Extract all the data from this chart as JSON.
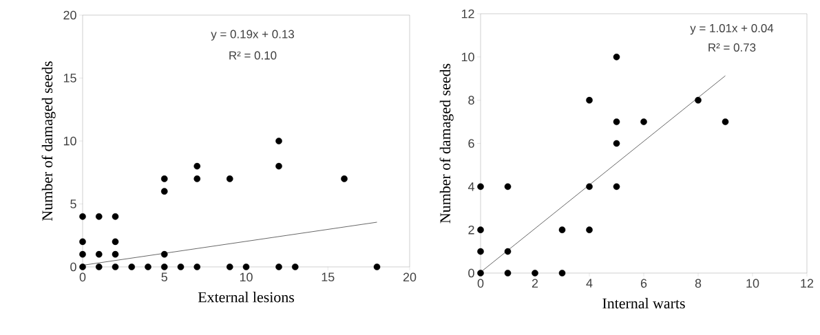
{
  "chart_data": [
    {
      "type": "scatter",
      "xlabel": "External lesions",
      "ylabel": "Number of damaged seeds",
      "xlim": [
        0,
        20
      ],
      "ylim": [
        0,
        20
      ],
      "xticks": [
        0,
        5,
        10,
        15,
        20
      ],
      "yticks": [
        0,
        5,
        10,
        15,
        20
      ],
      "marker": "circle",
      "annotations": [
        "y = 0.19x + 0.13",
        "R² = 0.10"
      ],
      "series": [
        {
          "color": "#000000",
          "x": [
            0,
            0,
            0,
            0,
            1,
            1,
            1,
            2,
            2,
            2,
            2,
            3,
            4,
            5,
            5,
            5,
            5,
            6,
            7,
            7,
            7,
            9,
            9,
            10,
            12,
            12,
            12,
            13,
            16,
            18
          ],
          "values": [
            4,
            2,
            1,
            0,
            4,
            1,
            0,
            4,
            2,
            1,
            0,
            0,
            0,
            7,
            6,
            1,
            0,
            0,
            8,
            7,
            0,
            7,
            0,
            0,
            10,
            8,
            0,
            0,
            7,
            0
          ]
        },
        {
          "type": "line",
          "marker": "none",
          "color": "#404040",
          "x": [
            0,
            18
          ],
          "values": [
            0.13,
            3.55
          ]
        }
      ]
    },
    {
      "type": "scatter",
      "xlabel": "Internal warts",
      "ylabel": "Number of damaged seeds",
      "xlim": [
        0,
        12
      ],
      "ylim": [
        0,
        12
      ],
      "xticks": [
        0,
        2,
        4,
        6,
        8,
        10,
        12
      ],
      "yticks": [
        0,
        2,
        4,
        6,
        8,
        10,
        12
      ],
      "marker": "circle",
      "annotations": [
        "y = 1.01x + 0.04",
        "R² = 0.73"
      ],
      "series": [
        {
          "color": "#000000",
          "x": [
            0,
            0,
            0,
            0,
            1,
            1,
            1,
            2,
            3,
            3,
            4,
            4,
            4,
            5,
            5,
            5,
            5,
            6,
            8,
            9
          ],
          "values": [
            4,
            2,
            1,
            0,
            4,
            1,
            0,
            0,
            2,
            0,
            8,
            4,
            2,
            10,
            7,
            6,
            4,
            7,
            8,
            7
          ]
        },
        {
          "type": "line",
          "marker": "none",
          "color": "#404040",
          "x": [
            0,
            9
          ],
          "values": [
            0.04,
            9.13
          ]
        }
      ]
    }
  ]
}
